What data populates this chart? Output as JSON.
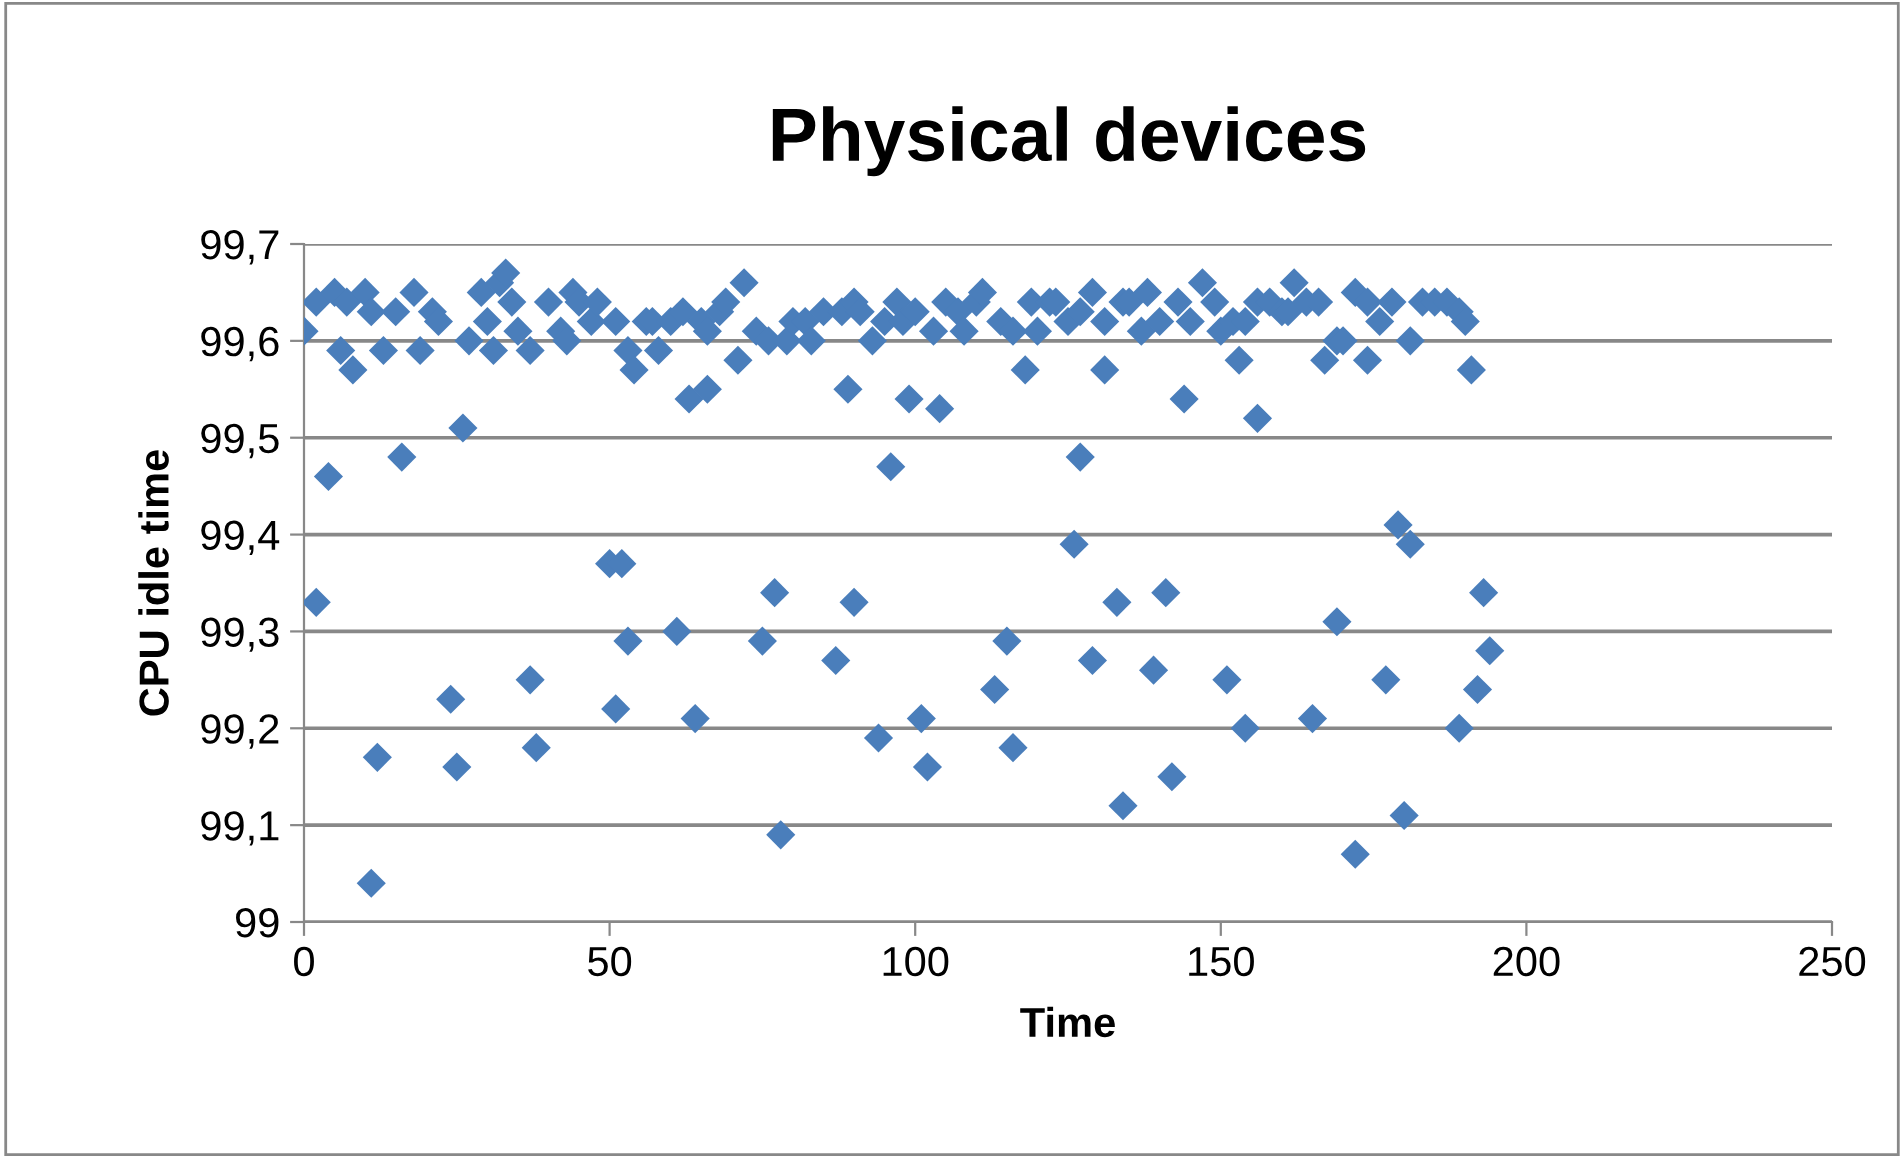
{
  "chart_data": {
    "type": "scatter",
    "title": "Physical devices",
    "xlabel": "Time",
    "ylabel": "CPU idle time",
    "marker": "diamond",
    "grid": "y",
    "color": "#4a7ebb",
    "xlim": [
      0,
      250
    ],
    "xticks": [
      0,
      50,
      100,
      150,
      200,
      250
    ],
    "ylim": [
      99,
      99.7
    ],
    "yticks": [
      {
        "value": 99,
        "label": "99"
      },
      {
        "value": 99.1,
        "label": "99,1"
      },
      {
        "value": 99.2,
        "label": "99,2"
      },
      {
        "value": 99.3,
        "label": "99,3"
      },
      {
        "value": 99.4,
        "label": "99,4"
      },
      {
        "value": 99.5,
        "label": "99,5"
      },
      {
        "value": 99.6,
        "label": "99,6"
      },
      {
        "value": 99.7,
        "label": "99,7"
      }
    ],
    "x": [
      2,
      4,
      12,
      11,
      16,
      24,
      25,
      26,
      37,
      38,
      50,
      52,
      51,
      53,
      61,
      64,
      63,
      66,
      75,
      77,
      78,
      87,
      90,
      89,
      94,
      96,
      99,
      101,
      102,
      104,
      113,
      115,
      116,
      126,
      127,
      129,
      133,
      134,
      131,
      139,
      141,
      142,
      144,
      151,
      154,
      156,
      153,
      165,
      169,
      172,
      177,
      179,
      181,
      180,
      181,
      191,
      189,
      192,
      193,
      194,
      174,
      0,
      2,
      5,
      6,
      7,
      8,
      10,
      11,
      13,
      15,
      18,
      19,
      21,
      22,
      27,
      29,
      30,
      31,
      32,
      33,
      34,
      35,
      37,
      40,
      42,
      43,
      44,
      45,
      47,
      48,
      51,
      53,
      54,
      56,
      57,
      58,
      60,
      62,
      65,
      66,
      68,
      69,
      71,
      72,
      74,
      76,
      79,
      80,
      82,
      83,
      85,
      88,
      90,
      91,
      93,
      95,
      97,
      98,
      100,
      103,
      105,
      107,
      108,
      110,
      111,
      114,
      116,
      118,
      119,
      120,
      122,
      123,
      125,
      127,
      129,
      131,
      134,
      135,
      137,
      138,
      140,
      143,
      145,
      147,
      149,
      150,
      152,
      154,
      156,
      158,
      160,
      161,
      162,
      164,
      166,
      167,
      169,
      170,
      172,
      174,
      176,
      178,
      183,
      185,
      187,
      189,
      190
    ],
    "values": [
      99.33,
      99.46,
      99.17,
      99.04,
      99.48,
      99.23,
      99.16,
      99.51,
      99.25,
      99.18,
      99.37,
      99.37,
      99.22,
      99.29,
      99.3,
      99.21,
      99.54,
      99.55,
      99.29,
      99.34,
      99.09,
      99.27,
      99.33,
      99.55,
      99.19,
      99.47,
      99.54,
      99.21,
      99.16,
      99.53,
      99.24,
      99.29,
      99.18,
      99.39,
      99.48,
      99.27,
      99.33,
      99.12,
      99.57,
      99.26,
      99.34,
      99.15,
      99.54,
      99.25,
      99.2,
      99.52,
      99.58,
      99.21,
      99.31,
      99.07,
      99.25,
      99.41,
      99.39,
      99.11,
      99.6,
      99.57,
      99.2,
      99.24,
      99.34,
      99.28,
      99.58,
      99.61,
      99.64,
      99.65,
      99.59,
      99.64,
      99.57,
      99.65,
      99.63,
      99.59,
      99.63,
      99.65,
      99.59,
      99.63,
      99.62,
      99.6,
      99.65,
      99.62,
      99.59,
      99.66,
      99.67,
      99.64,
      99.61,
      99.59,
      99.64,
      99.61,
      99.6,
      99.65,
      99.64,
      99.62,
      99.64,
      99.62,
      99.59,
      99.57,
      99.62,
      99.62,
      99.59,
      99.62,
      99.63,
      99.62,
      99.61,
      99.63,
      99.64,
      99.58,
      99.66,
      99.61,
      99.6,
      99.6,
      99.62,
      99.62,
      99.6,
      99.63,
      99.63,
      99.64,
      99.63,
      99.6,
      99.62,
      99.64,
      99.62,
      99.63,
      99.61,
      99.64,
      99.63,
      99.61,
      99.64,
      99.65,
      99.62,
      99.61,
      99.57,
      99.64,
      99.61,
      99.64,
      99.64,
      99.62,
      99.63,
      99.65,
      99.62,
      99.64,
      99.64,
      99.61,
      99.65,
      99.62,
      99.64,
      99.62,
      99.66,
      99.64,
      99.61,
      99.62,
      99.62,
      99.64,
      99.64,
      99.63,
      99.63,
      99.66,
      99.64,
      99.64,
      99.58,
      99.6,
      99.6,
      99.65,
      99.64,
      99.62,
      99.64,
      99.64,
      99.64,
      99.64,
      99.63,
      99.62
    ]
  }
}
